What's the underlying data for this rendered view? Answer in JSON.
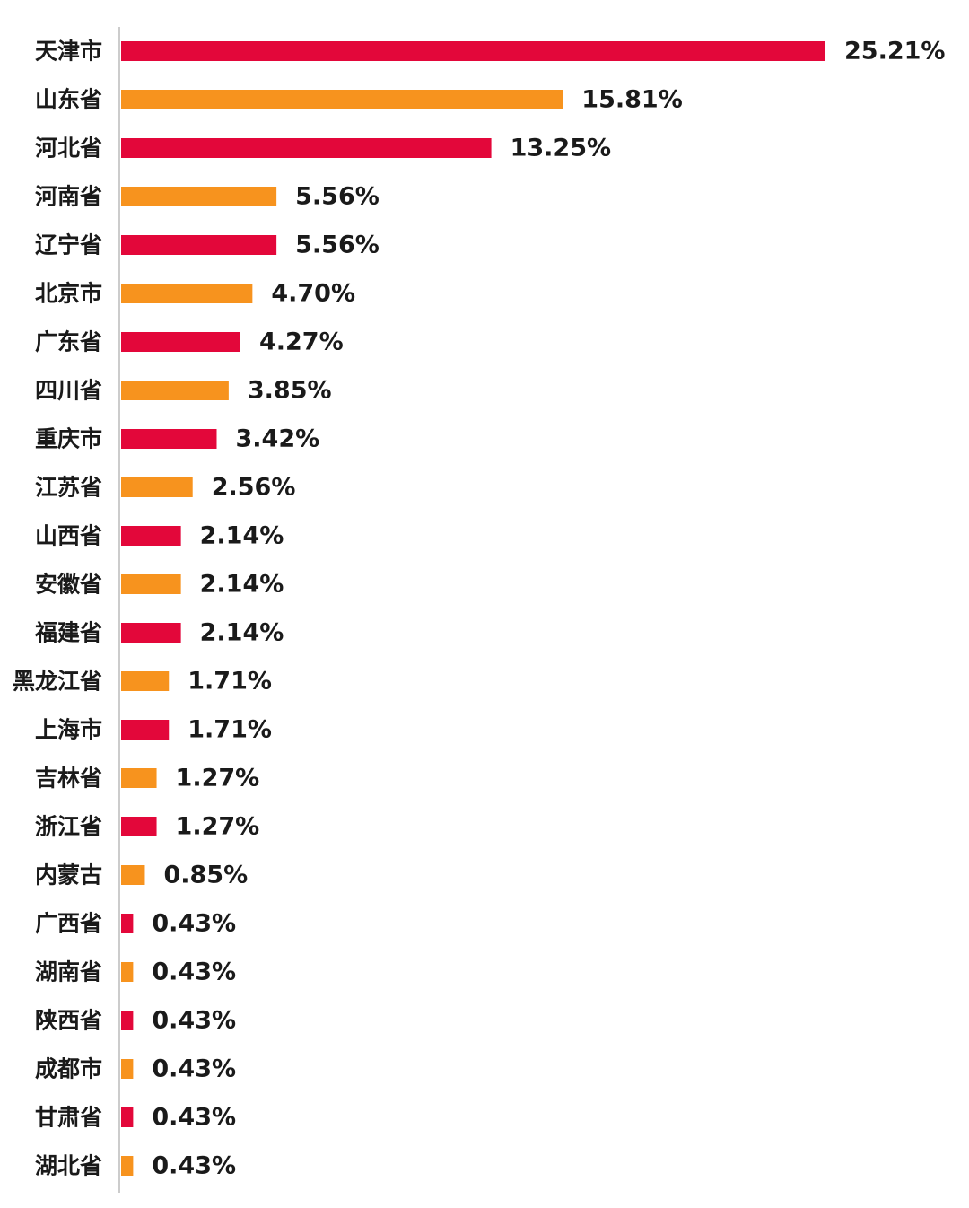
{
  "chart_data": {
    "type": "bar",
    "orientation": "horizontal",
    "title": "",
    "xlabel": "",
    "ylabel": "",
    "grid": false,
    "legend": "none",
    "value_suffix": "%",
    "xlim": [
      0,
      25.21
    ],
    "colors": {
      "primary": "#E3073A",
      "secondary": "#F7931E",
      "axis": "#cccccc",
      "text": "#1a1a1a"
    },
    "categories": [
      "天津市",
      "山东省",
      "河北省",
      "河南省",
      "辽宁省",
      "北京市",
      "广东省",
      "四川省",
      "重庆市",
      "江苏省",
      "山西省",
      "安徽省",
      "福建省",
      "黑龙江省",
      "上海市",
      "吉林省",
      "浙江省",
      "内蒙古",
      "广西省",
      "湖南省",
      "陕西省",
      "成都市",
      "甘肃省",
      "湖北省"
    ],
    "values": [
      25.21,
      15.81,
      13.25,
      5.56,
      5.56,
      4.7,
      4.27,
      3.85,
      3.42,
      2.56,
      2.14,
      2.14,
      2.14,
      1.71,
      1.71,
      1.27,
      1.27,
      0.85,
      0.43,
      0.43,
      0.43,
      0.43,
      0.43,
      0.43
    ],
    "labels": [
      "25.21%",
      "15.81%",
      "13.25%",
      "5.56%",
      "5.56%",
      "4.70%",
      "4.27%",
      "3.85%",
      "3.42%",
      "2.56%",
      "2.14%",
      "2.14%",
      "2.14%",
      "1.71%",
      "1.71%",
      "1.27%",
      "1.27%",
      "0.85%",
      "0.43%",
      "0.43%",
      "0.43%",
      "0.43%",
      "0.43%",
      "0.43%"
    ],
    "bar_colors": [
      "#E3073A",
      "#F7931E",
      "#E3073A",
      "#F7931E",
      "#E3073A",
      "#F7931E",
      "#E3073A",
      "#F7931E",
      "#E3073A",
      "#F7931E",
      "#E3073A",
      "#F7931E",
      "#E3073A",
      "#F7931E",
      "#E3073A",
      "#F7931E",
      "#E3073A",
      "#F7931E",
      "#E3073A",
      "#F7931E",
      "#E3073A",
      "#F7931E",
      "#E3073A",
      "#F7931E"
    ]
  }
}
